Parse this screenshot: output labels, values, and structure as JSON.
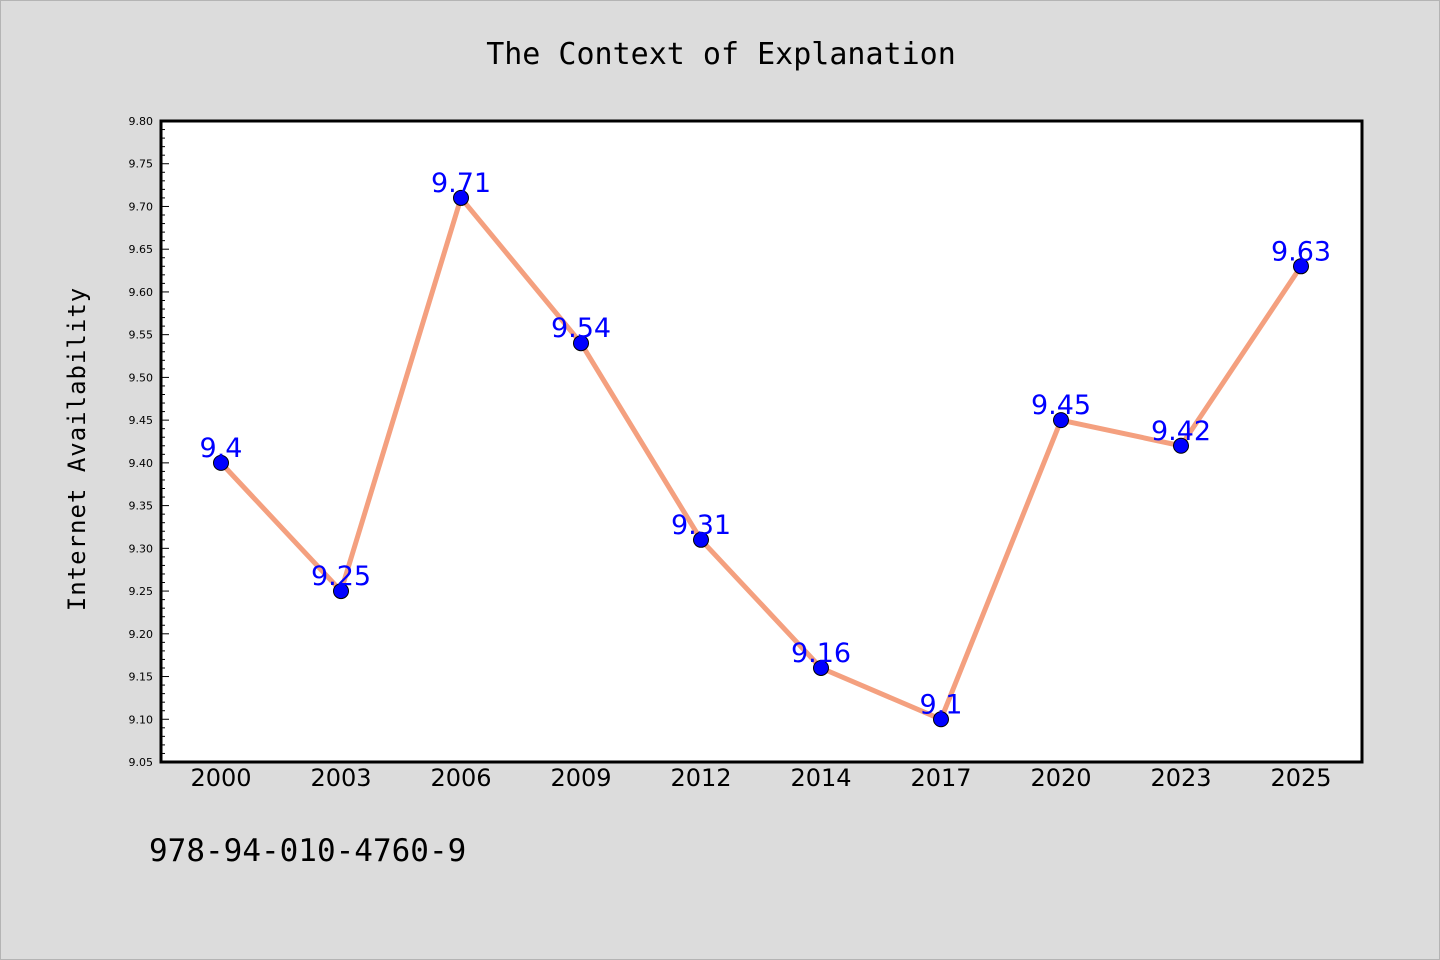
{
  "footer_text": "978-94-010-4760-9",
  "colors": {
    "background": "#dcdcdc",
    "plot_area": "#ffffff",
    "line": "#f4a07f",
    "marker": "#0000ff",
    "label": "#0000ff"
  },
  "chart_data": {
    "type": "line",
    "title": "The Context of Explanation",
    "xlabel": "",
    "ylabel": "Internet Availability",
    "categories": [
      "2000",
      "2003",
      "2006",
      "2009",
      "2012",
      "2014",
      "2017",
      "2020",
      "2023",
      "2025"
    ],
    "series": [
      {
        "values": [
          9.4,
          9.25,
          9.71,
          9.54,
          9.31,
          9.16,
          9.1,
          9.45,
          9.42,
          9.63
        ],
        "data_labels": [
          "9.4",
          "9.25",
          "9.71",
          "9.54",
          "9.31",
          "9.16",
          "9.1",
          "9.45",
          "9.42",
          "9.63"
        ]
      }
    ],
    "ylim": [
      9.05,
      9.8
    ],
    "yticks": [
      "9.05",
      "9.10",
      "9.15",
      "9.20",
      "9.25",
      "9.30",
      "9.35",
      "9.40",
      "9.45",
      "9.50",
      "9.55",
      "9.60",
      "9.65",
      "9.70",
      "9.75",
      "9.80"
    ],
    "grid": false,
    "legend": "none"
  }
}
